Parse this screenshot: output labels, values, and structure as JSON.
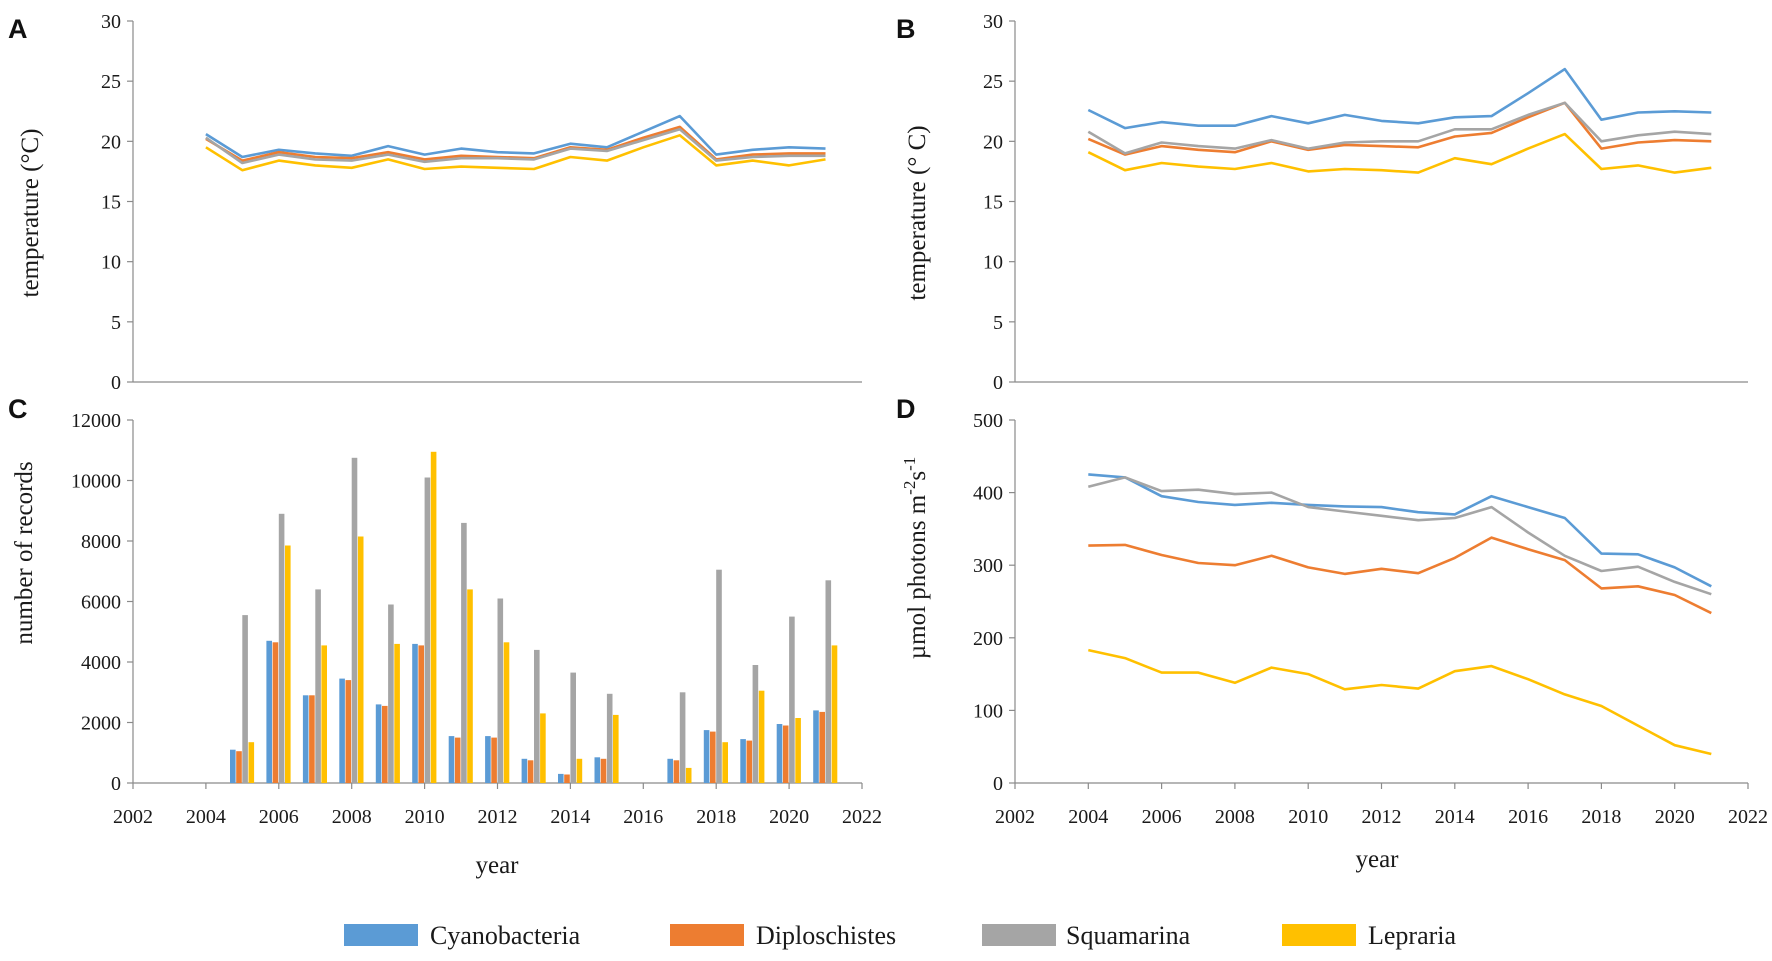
{
  "colors": {
    "Cyanobacteria": "#5B9BD5",
    "Diploschistes": "#ED7D31",
    "Squamarina": "#A5A5A5",
    "Lepraria": "#FFC000"
  },
  "legend": {
    "items": [
      "Cyanobacteria",
      "Diploschistes",
      "Squamarina",
      "Lepraria"
    ]
  },
  "chart_data": [
    {
      "panel": "A",
      "type": "line",
      "title": "",
      "xlabel": "",
      "ylabel": "temperature (°C)",
      "ylim": [
        0,
        30
      ],
      "yticks": [
        0,
        5,
        10,
        15,
        20,
        25,
        30
      ],
      "show_x_ticks": false,
      "x": [
        2004,
        2005,
        2006,
        2007,
        2008,
        2009,
        2010,
        2011,
        2012,
        2013,
        2014,
        2015,
        2016,
        2017,
        2018,
        2019,
        2020,
        2021
      ],
      "series": [
        {
          "name": "Cyanobacteria",
          "values": [
            20.6,
            18.7,
            19.3,
            19.0,
            18.8,
            19.6,
            18.9,
            19.4,
            19.1,
            19.0,
            19.8,
            19.5,
            20.8,
            22.1,
            18.9,
            19.3,
            19.5,
            19.4
          ]
        },
        {
          "name": "Diploschistes",
          "values": [
            20.2,
            18.4,
            19.1,
            18.7,
            18.6,
            19.1,
            18.5,
            18.8,
            18.7,
            18.6,
            19.5,
            19.3,
            20.3,
            21.2,
            18.5,
            18.9,
            19.0,
            19.0
          ]
        },
        {
          "name": "Squamarina",
          "values": [
            20.3,
            18.2,
            18.9,
            18.5,
            18.4,
            18.9,
            18.3,
            18.6,
            18.6,
            18.5,
            19.4,
            19.2,
            20.1,
            21.0,
            18.4,
            18.7,
            18.8,
            18.8
          ]
        },
        {
          "name": "Lepraria",
          "values": [
            19.5,
            17.6,
            18.4,
            18.0,
            17.8,
            18.5,
            17.7,
            17.9,
            17.8,
            17.7,
            18.7,
            18.4,
            19.5,
            20.5,
            18.0,
            18.4,
            18.0,
            18.5
          ]
        }
      ]
    },
    {
      "panel": "B",
      "type": "line",
      "title": "",
      "xlabel": "",
      "ylabel": "temperature (° C)",
      "ylim": [
        0,
        30
      ],
      "yticks": [
        0,
        5,
        10,
        15,
        20,
        25,
        30
      ],
      "show_x_ticks": false,
      "x": [
        2004,
        2005,
        2006,
        2007,
        2008,
        2009,
        2010,
        2011,
        2012,
        2013,
        2014,
        2015,
        2016,
        2017,
        2018,
        2019,
        2020,
        2021
      ],
      "series": [
        {
          "name": "Cyanobacteria",
          "values": [
            22.6,
            21.1,
            21.6,
            21.3,
            21.3,
            22.1,
            21.5,
            22.2,
            21.7,
            21.5,
            22.0,
            22.1,
            24.0,
            26.0,
            21.8,
            22.4,
            22.5,
            22.4
          ]
        },
        {
          "name": "Diploschistes",
          "values": [
            20.2,
            18.9,
            19.6,
            19.3,
            19.1,
            20.0,
            19.3,
            19.7,
            19.6,
            19.5,
            20.4,
            20.7,
            22.0,
            23.2,
            19.4,
            19.9,
            20.1,
            20.0
          ]
        },
        {
          "name": "Squamarina",
          "values": [
            20.8,
            19.0,
            19.9,
            19.6,
            19.4,
            20.1,
            19.4,
            19.9,
            20.0,
            20.0,
            21.0,
            21.0,
            22.2,
            23.2,
            20.0,
            20.5,
            20.8,
            20.6
          ]
        },
        {
          "name": "Lepraria",
          "values": [
            19.1,
            17.6,
            18.2,
            17.9,
            17.7,
            18.2,
            17.5,
            17.7,
            17.6,
            17.4,
            18.6,
            18.1,
            19.4,
            20.6,
            17.7,
            18.0,
            17.4,
            17.8
          ]
        }
      ]
    },
    {
      "panel": "C",
      "type": "bar",
      "title": "",
      "xlabel": "year",
      "ylabel": "number of records",
      "ylim": [
        0,
        12000
      ],
      "yticks": [
        0,
        2000,
        4000,
        6000,
        8000,
        10000,
        12000
      ],
      "xlim": [
        2002,
        2022
      ],
      "xticks": [
        2002,
        2004,
        2006,
        2008,
        2010,
        2012,
        2014,
        2016,
        2018,
        2020,
        2022
      ],
      "x": [
        2005,
        2006,
        2007,
        2008,
        2009,
        2010,
        2011,
        2012,
        2013,
        2014,
        2015,
        2017,
        2018,
        2019,
        2020,
        2021
      ],
      "series": [
        {
          "name": "Cyanobacteria",
          "values": [
            1100,
            4700,
            2900,
            3450,
            2600,
            4600,
            1550,
            1550,
            800,
            300,
            850,
            800,
            1750,
            1450,
            1950,
            2400
          ]
        },
        {
          "name": "Diploschistes",
          "values": [
            1050,
            4650,
            2900,
            3400,
            2550,
            4550,
            1500,
            1500,
            750,
            280,
            800,
            750,
            1700,
            1400,
            1900,
            2350
          ]
        },
        {
          "name": "Squamarina",
          "values": [
            5550,
            8900,
            6400,
            10750,
            5900,
            10100,
            8600,
            6100,
            4400,
            3650,
            2950,
            3000,
            7050,
            3900,
            5500,
            6700
          ]
        },
        {
          "name": "Lepraria",
          "values": [
            1350,
            7850,
            4550,
            8150,
            4600,
            10950,
            6400,
            4650,
            2300,
            800,
            2250,
            500,
            1350,
            3050,
            2150,
            4550
          ]
        }
      ]
    },
    {
      "panel": "D",
      "type": "line",
      "title": "",
      "xlabel": "year",
      "ylabel": "µmol photons m",
      "ylabel_sup1": "-2",
      "ylabel_mid": "s",
      "ylabel_sup2": "-1",
      "ylim": [
        0,
        500
      ],
      "yticks": [
        0,
        100,
        200,
        300,
        400,
        500
      ],
      "xlim": [
        2002,
        2022
      ],
      "xticks": [
        2002,
        2004,
        2006,
        2008,
        2010,
        2012,
        2014,
        2016,
        2018,
        2020,
        2022
      ],
      "x": [
        2004,
        2005,
        2006,
        2007,
        2008,
        2009,
        2010,
        2011,
        2012,
        2013,
        2014,
        2015,
        2016,
        2017,
        2018,
        2019,
        2020,
        2021
      ],
      "series": [
        {
          "name": "Cyanobacteria",
          "values": [
            425,
            421,
            395,
            387,
            383,
            386,
            383,
            381,
            380,
            373,
            370,
            395,
            380,
            365,
            316,
            315,
            297,
            271
          ]
        },
        {
          "name": "Diploschistes",
          "values": [
            327,
            328,
            314,
            303,
            300,
            313,
            297,
            288,
            295,
            289,
            310,
            338,
            322,
            307,
            268,
            271,
            259,
            234
          ]
        },
        {
          "name": "Squamarina",
          "values": [
            408,
            421,
            402,
            404,
            398,
            400,
            380,
            374,
            368,
            362,
            365,
            380,
            345,
            313,
            292,
            298,
            277,
            260
          ]
        },
        {
          "name": "Lepraria",
          "values": [
            183,
            172,
            152,
            152,
            138,
            159,
            150,
            129,
            135,
            130,
            154,
            161,
            143,
            122,
            106,
            79,
            52,
            40
          ]
        }
      ]
    }
  ]
}
